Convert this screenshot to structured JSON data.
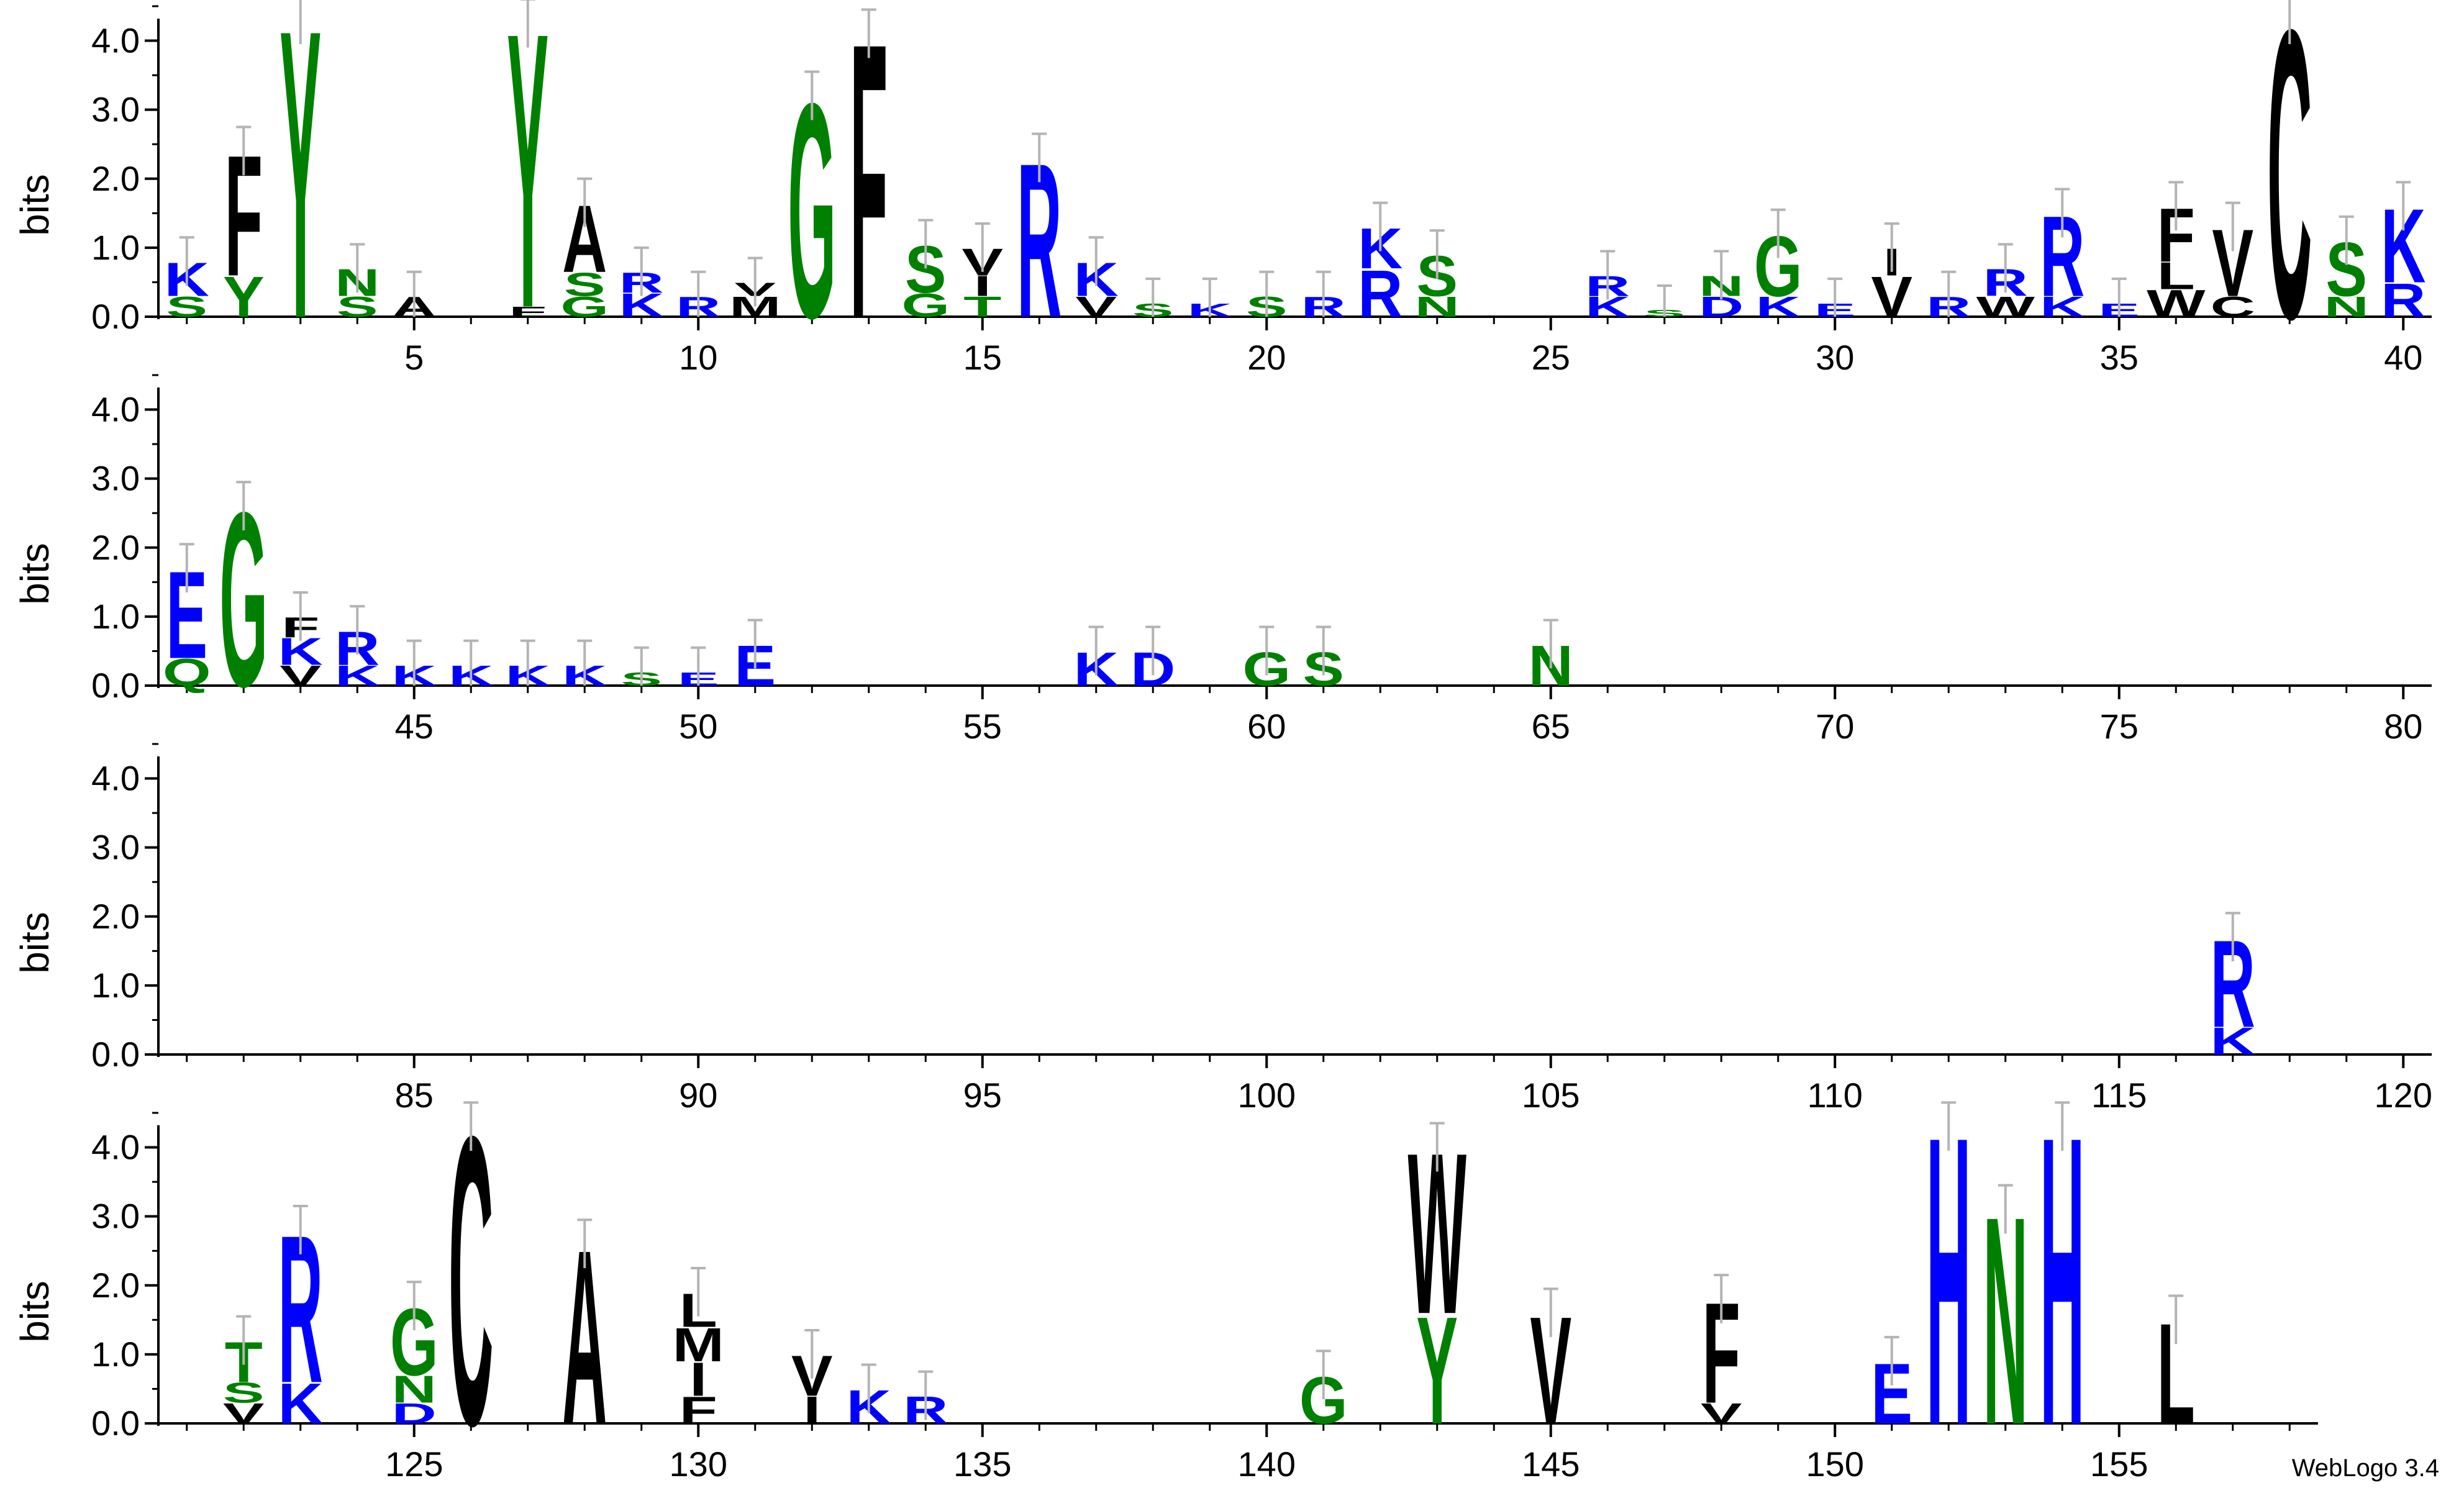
{
  "credit": "WebLogo 3.4",
  "colors": {
    "hydrophobic": "#000000",
    "polar": "#008000",
    "charged": "#0000ff",
    "errorbar": "#b4b4b4"
  },
  "chart_data": {
    "type": "sequence-logo",
    "ylabel": "bits",
    "ylim": [
      0,
      4.32
    ],
    "yticks": [
      0.0,
      1.0,
      2.0,
      3.0,
      4.0
    ],
    "panels": [
      {
        "start": 1,
        "end": 40,
        "xticks": [
          5,
          10,
          15,
          20,
          25,
          30,
          35,
          40
        ]
      },
      {
        "start": 41,
        "end": 80,
        "xticks": [
          45,
          50,
          55,
          60,
          65,
          70,
          75,
          80
        ]
      },
      {
        "start": 81,
        "end": 120,
        "xticks": [
          85,
          90,
          95,
          100,
          105,
          110,
          115,
          120
        ]
      },
      {
        "start": 121,
        "end": 158,
        "xticks": [
          125,
          130,
          135,
          140,
          145,
          150,
          155
        ]
      }
    ],
    "stacks": {
      "1": [
        [
          "S",
          0.3
        ],
        [
          "K",
          0.5
        ]
      ],
      "2": [
        [
          "Y",
          0.6
        ],
        [
          "F",
          1.8
        ]
      ],
      "3": [
        [
          "Y",
          4.3
        ]
      ],
      "4": [
        [
          "S",
          0.3
        ],
        [
          "N",
          0.4
        ]
      ],
      "5": [
        [
          "A",
          0.3
        ]
      ],
      "7": [
        [
          "F",
          0.15
        ],
        [
          "Y",
          4.1
        ]
      ],
      "8": [
        [
          "G",
          0.3
        ],
        [
          "S",
          0.35
        ],
        [
          "A",
          1.0
        ]
      ],
      "9": [
        [
          "K",
          0.35
        ],
        [
          "R",
          0.3
        ]
      ],
      "10": [
        [
          "R",
          0.3
        ]
      ],
      "11": [
        [
          "M",
          0.3
        ],
        [
          "V",
          0.2
        ]
      ],
      "12": [
        [
          "G",
          3.2
        ]
      ],
      "13": [
        [
          "F",
          4.1
        ]
      ],
      "14": [
        [
          "G",
          0.35
        ],
        [
          "S",
          0.7
        ]
      ],
      "15": [
        [
          "T",
          0.3
        ],
        [
          "I",
          0.3
        ],
        [
          "V",
          0.4
        ]
      ],
      "16": [
        [
          "R",
          2.3
        ]
      ],
      "17": [
        [
          "V",
          0.3
        ],
        [
          "K",
          0.5
        ]
      ],
      "18": [
        [
          "S",
          0.2
        ]
      ],
      "19": [
        [
          "K",
          0.2
        ]
      ],
      "20": [
        [
          "S",
          0.3
        ]
      ],
      "21": [
        [
          "R",
          0.3
        ]
      ],
      "22": [
        [
          "R",
          0.7
        ],
        [
          "K",
          0.6
        ]
      ],
      "23": [
        [
          "N",
          0.3
        ],
        [
          "S",
          0.6
        ]
      ],
      "26": [
        [
          "K",
          0.3
        ],
        [
          "R",
          0.3
        ]
      ],
      "27": [
        [
          "S",
          0.1
        ]
      ],
      "28": [
        [
          "D",
          0.3
        ],
        [
          "N",
          0.3
        ]
      ],
      "29": [
        [
          "K",
          0.3
        ],
        [
          "G",
          0.9
        ]
      ],
      "30": [
        [
          "E",
          0.2
        ]
      ],
      "31": [
        [
          "V",
          0.6
        ],
        [
          "I",
          0.4
        ]
      ],
      "32": [
        [
          "R",
          0.3
        ]
      ],
      "33": [
        [
          "W",
          0.3
        ],
        [
          "R",
          0.4
        ]
      ],
      "34": [
        [
          "K",
          0.3
        ],
        [
          "R",
          1.2
        ]
      ],
      "35": [
        [
          "E",
          0.2
        ]
      ],
      "36": [
        [
          "W",
          0.4
        ],
        [
          "L",
          0.4
        ],
        [
          "F",
          0.8
        ]
      ],
      "37": [
        [
          "C",
          0.3
        ],
        [
          "V",
          1.0
        ]
      ],
      "38": [
        [
          "C",
          4.3
        ]
      ],
      "39": [
        [
          "N",
          0.3
        ],
        [
          "S",
          0.8
        ]
      ],
      "40": [
        [
          "R",
          0.5
        ],
        [
          "K",
          1.1
        ]
      ],
      "41": [
        [
          "Q",
          0.4
        ],
        [
          "E",
          1.3
        ]
      ],
      "42": [
        [
          "G",
          2.6
        ]
      ],
      "43": [
        [
          "V",
          0.3
        ],
        [
          "K",
          0.4
        ],
        [
          "F",
          0.3
        ]
      ],
      "44": [
        [
          "K",
          0.3
        ],
        [
          "R",
          0.5
        ]
      ],
      "45": [
        [
          "K",
          0.3
        ]
      ],
      "46": [
        [
          "K",
          0.3
        ]
      ],
      "47": [
        [
          "K",
          0.3
        ]
      ],
      "48": [
        [
          "K",
          0.3
        ]
      ],
      "49": [
        [
          "S",
          0.2
        ]
      ],
      "50": [
        [
          "E",
          0.2
        ]
      ],
      "51": [
        [
          "E",
          0.6
        ]
      ],
      "57": [
        [
          "K",
          0.5
        ]
      ],
      "58": [
        [
          "D",
          0.5
        ]
      ],
      "60": [
        [
          "G",
          0.5
        ]
      ],
      "61": [
        [
          "S",
          0.5
        ]
      ],
      "65": [
        [
          "N",
          0.6
        ]
      ],
      "117": [
        [
          "K",
          0.4
        ],
        [
          "R",
          1.3
        ]
      ],
      "122": [
        [
          "V",
          0.3
        ],
        [
          "S",
          0.3
        ],
        [
          "T",
          0.6
        ]
      ],
      "123": [
        [
          "K",
          0.6
        ],
        [
          "R",
          2.2
        ]
      ],
      "125": [
        [
          "D",
          0.3
        ],
        [
          "N",
          0.4
        ],
        [
          "G",
          1.0
        ]
      ],
      "126": [
        [
          "C",
          4.3
        ]
      ],
      "128": [
        [
          "A",
          2.6
        ]
      ],
      "130": [
        [
          "F",
          0.4
        ],
        [
          "I",
          0.5
        ],
        [
          "M",
          0.5
        ],
        [
          "L",
          0.5
        ]
      ],
      "132": [
        [
          "I",
          0.4
        ],
        [
          "V",
          0.6
        ]
      ],
      "133": [
        [
          "K",
          0.5
        ]
      ],
      "134": [
        [
          "R",
          0.4
        ]
      ],
      "141": [
        [
          "G",
          0.7
        ]
      ],
      "143": [
        [
          "Y",
          1.6
        ],
        [
          "W",
          2.4
        ]
      ],
      "145": [
        [
          "V",
          1.6
        ]
      ],
      "148": [
        [
          "V",
          0.3
        ],
        [
          "F",
          1.5
        ]
      ],
      "151": [
        [
          "E",
          0.9
        ]
      ],
      "152": [
        [
          "H",
          4.3
        ]
      ],
      "153": [
        [
          "N",
          3.1
        ]
      ],
      "154": [
        [
          "H",
          4.3
        ]
      ],
      "156": [
        [
          "L",
          1.5
        ]
      ]
    }
  }
}
